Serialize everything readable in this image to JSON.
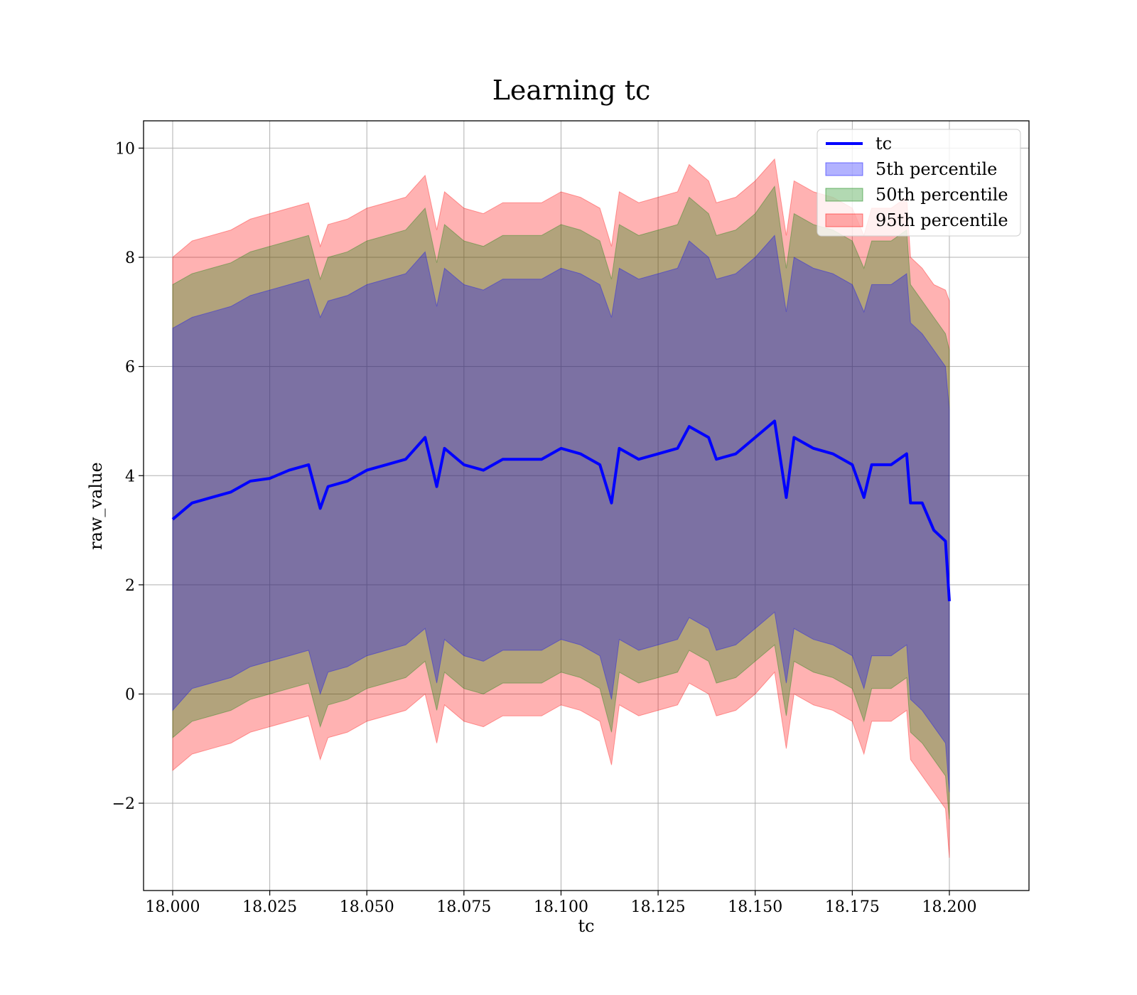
{
  "chart_data": {
    "type": "line",
    "title": "Learning tc",
    "xlabel": "tc",
    "ylabel": "raw_value",
    "xlim": [
      17.9925,
      18.2205
    ],
    "ylim": [
      -3.6,
      10.5
    ],
    "grid": true,
    "legend": {
      "position": "top-right",
      "entries": [
        {
          "name": "tc",
          "kind": "line",
          "color": "#0000ff"
        },
        {
          "name": "5th percentile",
          "kind": "band",
          "color": "#0000ff"
        },
        {
          "name": "50th percentile",
          "kind": "band",
          "color": "#008000"
        },
        {
          "name": "95th percentile",
          "kind": "band",
          "color": "#ff0000"
        }
      ]
    },
    "x_ticks": [
      {
        "value": 18.0,
        "label": "18.000"
      },
      {
        "value": 18.025,
        "label": "18.025"
      },
      {
        "value": 18.05,
        "label": "18.050"
      },
      {
        "value": 18.075,
        "label": "18.075"
      },
      {
        "value": 18.1,
        "label": "18.100"
      },
      {
        "value": 18.125,
        "label": "18.125"
      },
      {
        "value": 18.15,
        "label": "18.150"
      },
      {
        "value": 18.175,
        "label": "18.175"
      },
      {
        "value": 18.2,
        "label": "18.200"
      }
    ],
    "y_ticks": [
      {
        "value": -2,
        "label": "−2"
      },
      {
        "value": 0,
        "label": "0"
      },
      {
        "value": 2,
        "label": "2"
      },
      {
        "value": 4,
        "label": "4"
      },
      {
        "value": 6,
        "label": "6"
      },
      {
        "value": 8,
        "label": "8"
      },
      {
        "value": 10,
        "label": "10"
      }
    ],
    "x": [
      18.0,
      18.005,
      18.01,
      18.015,
      18.02,
      18.025,
      18.03,
      18.035,
      18.038,
      18.04,
      18.045,
      18.05,
      18.055,
      18.06,
      18.065,
      18.068,
      18.07,
      18.075,
      18.08,
      18.085,
      18.09,
      18.095,
      18.1,
      18.105,
      18.11,
      18.113,
      18.115,
      18.12,
      18.125,
      18.13,
      18.133,
      18.138,
      18.14,
      18.145,
      18.15,
      18.155,
      18.158,
      18.16,
      18.165,
      18.17,
      18.175,
      18.178,
      18.18,
      18.185,
      18.189,
      18.19,
      18.193,
      18.196,
      18.199,
      18.2
    ],
    "series": [
      {
        "name": "tc",
        "color": "#0000ff",
        "values": [
          3.2,
          3.5,
          3.6,
          3.7,
          3.9,
          3.95,
          4.1,
          4.2,
          3.4,
          3.8,
          3.9,
          4.1,
          4.2,
          4.3,
          4.7,
          3.8,
          4.5,
          4.2,
          4.1,
          4.3,
          4.3,
          4.3,
          4.5,
          4.4,
          4.2,
          3.5,
          4.5,
          4.3,
          4.4,
          4.5,
          4.9,
          4.7,
          4.3,
          4.4,
          4.7,
          5.0,
          3.6,
          4.7,
          4.5,
          4.4,
          4.2,
          3.6,
          4.2,
          4.2,
          4.4,
          3.5,
          3.5,
          3.0,
          2.8,
          1.7
        ]
      }
    ],
    "bands": [
      {
        "name": "5th percentile",
        "color": "#0000ff",
        "lower": [
          -0.3,
          0.1,
          0.2,
          0.3,
          0.5,
          0.6,
          0.7,
          0.8,
          0.0,
          0.4,
          0.5,
          0.7,
          0.8,
          0.9,
          1.2,
          0.2,
          1.0,
          0.7,
          0.6,
          0.8,
          0.8,
          0.8,
          1.0,
          0.9,
          0.7,
          -0.1,
          1.0,
          0.8,
          0.9,
          1.0,
          1.4,
          1.2,
          0.8,
          0.9,
          1.2,
          1.5,
          0.2,
          1.2,
          1.0,
          0.9,
          0.7,
          0.1,
          0.7,
          0.7,
          0.9,
          -0.1,
          -0.3,
          -0.6,
          -0.9,
          -1.8
        ],
        "upper": [
          6.7,
          6.9,
          7.0,
          7.1,
          7.3,
          7.4,
          7.5,
          7.6,
          6.9,
          7.2,
          7.3,
          7.5,
          7.6,
          7.7,
          8.1,
          7.1,
          7.8,
          7.5,
          7.4,
          7.6,
          7.6,
          7.6,
          7.8,
          7.7,
          7.5,
          6.9,
          7.8,
          7.6,
          7.7,
          7.8,
          8.3,
          8.0,
          7.6,
          7.7,
          8.0,
          8.4,
          7.0,
          8.0,
          7.8,
          7.7,
          7.5,
          7.0,
          7.5,
          7.5,
          7.7,
          6.8,
          6.6,
          6.3,
          6.0,
          5.2
        ]
      },
      {
        "name": "50th percentile",
        "color": "#008000",
        "lower": [
          -0.8,
          -0.5,
          -0.4,
          -0.3,
          -0.1,
          0.0,
          0.1,
          0.2,
          -0.6,
          -0.2,
          -0.1,
          0.1,
          0.2,
          0.3,
          0.6,
          -0.3,
          0.4,
          0.1,
          0.0,
          0.2,
          0.2,
          0.2,
          0.4,
          0.3,
          0.1,
          -0.7,
          0.4,
          0.2,
          0.3,
          0.4,
          0.8,
          0.6,
          0.2,
          0.3,
          0.6,
          0.9,
          -0.4,
          0.6,
          0.4,
          0.3,
          0.1,
          -0.5,
          0.1,
          0.1,
          0.3,
          -0.7,
          -0.9,
          -1.2,
          -1.5,
          -2.3
        ],
        "upper": [
          7.5,
          7.7,
          7.8,
          7.9,
          8.1,
          8.2,
          8.3,
          8.4,
          7.6,
          8.0,
          8.1,
          8.3,
          8.4,
          8.5,
          8.9,
          7.9,
          8.6,
          8.3,
          8.2,
          8.4,
          8.4,
          8.4,
          8.6,
          8.5,
          8.3,
          7.6,
          8.6,
          8.4,
          8.5,
          8.6,
          9.1,
          8.8,
          8.4,
          8.5,
          8.8,
          9.3,
          7.8,
          8.8,
          8.6,
          8.5,
          8.3,
          7.8,
          8.3,
          8.3,
          8.5,
          7.5,
          7.2,
          6.9,
          6.6,
          6.3
        ]
      },
      {
        "name": "95th percentile",
        "color": "#ff0000",
        "lower": [
          -1.4,
          -1.1,
          -1.0,
          -0.9,
          -0.7,
          -0.6,
          -0.5,
          -0.4,
          -1.2,
          -0.8,
          -0.7,
          -0.5,
          -0.4,
          -0.3,
          0.0,
          -0.9,
          -0.2,
          -0.5,
          -0.6,
          -0.4,
          -0.4,
          -0.4,
          -0.2,
          -0.3,
          -0.5,
          -1.3,
          -0.2,
          -0.4,
          -0.3,
          -0.2,
          0.2,
          0.0,
          -0.4,
          -0.3,
          0.0,
          0.4,
          -1.0,
          0.0,
          -0.2,
          -0.3,
          -0.5,
          -1.1,
          -0.5,
          -0.5,
          -0.3,
          -1.2,
          -1.5,
          -1.8,
          -2.1,
          -3.0
        ],
        "upper": [
          8.0,
          8.3,
          8.4,
          8.5,
          8.7,
          8.8,
          8.9,
          9.0,
          8.2,
          8.6,
          8.7,
          8.9,
          9.0,
          9.1,
          9.5,
          8.5,
          9.2,
          8.9,
          8.8,
          9.0,
          9.0,
          9.0,
          9.2,
          9.1,
          8.9,
          8.2,
          9.2,
          9.0,
          9.1,
          9.2,
          9.7,
          9.4,
          9.0,
          9.1,
          9.4,
          9.8,
          8.4,
          9.4,
          9.2,
          9.1,
          8.9,
          8.4,
          8.9,
          8.9,
          9.1,
          8.0,
          7.8,
          7.5,
          7.4,
          7.2
        ]
      }
    ]
  }
}
